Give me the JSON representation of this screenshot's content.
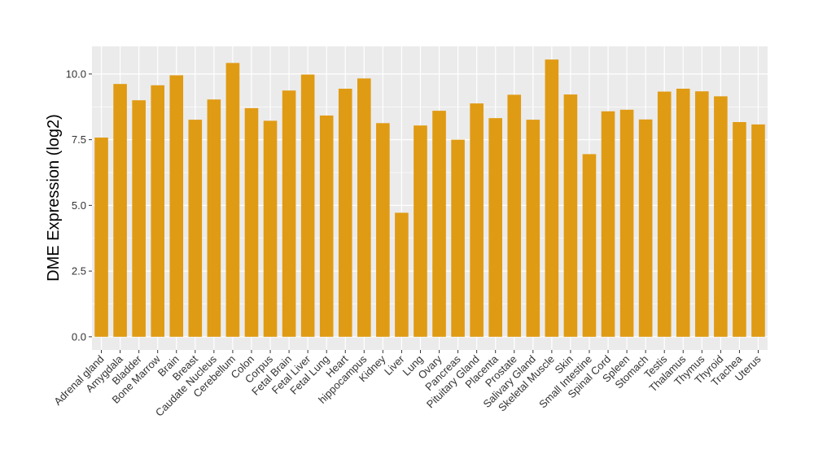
{
  "chart_data": {
    "type": "bar",
    "ylabel": "DME Expression (log2)",
    "xlabel": "",
    "ylim": [
      -0.5,
      11.05
    ],
    "yticks": [
      0.0,
      2.5,
      5.0,
      7.5,
      10.0
    ],
    "ytick_labels": [
      "0.0",
      "2.5",
      "5.0",
      "7.5",
      "10.0"
    ],
    "grid": true,
    "colors": {
      "bar": "#E09B14",
      "panel": "#EBEBEB",
      "gridline": "#FFFFFF"
    },
    "categories": [
      "Adrenal gland",
      "Amygdala",
      "Bladder",
      "Bone Marrow",
      "Brain",
      "Breast",
      "Caudate Nucleus",
      "Cerebellum",
      "Colon",
      "Corpus",
      "Fetal Brain",
      "Fetal Liver",
      "Fetal Lung",
      "Heart",
      "hippocampus",
      "Kidney",
      "Liver",
      "Lung",
      "Ovary",
      "Pancreas",
      "Pituitary Gland",
      "Placenta",
      "Prostate",
      "Salivary Gland",
      "Skeletal Muscle",
      "Skin",
      "Small Intestine",
      "Spinal Cord",
      "Spleen",
      "Stomach",
      "Testis",
      "Thalamus",
      "Thymus",
      "Thyroid",
      "Trachea",
      "Uterus"
    ],
    "values": [
      7.58,
      9.62,
      9.0,
      9.57,
      9.95,
      8.26,
      9.03,
      10.42,
      8.7,
      8.22,
      9.37,
      9.98,
      8.42,
      9.44,
      9.83,
      8.13,
      4.72,
      8.04,
      8.6,
      7.5,
      8.88,
      8.32,
      9.21,
      8.26,
      10.55,
      9.22,
      6.95,
      8.58,
      8.64,
      8.27,
      9.33,
      9.44,
      9.34,
      9.15,
      8.17,
      8.08
    ]
  }
}
